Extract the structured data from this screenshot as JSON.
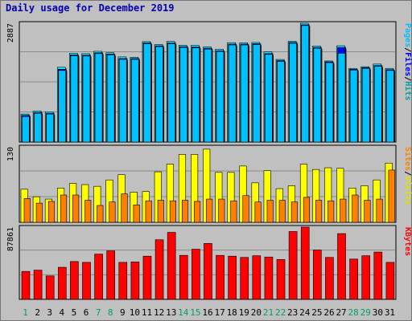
{
  "title": "Daily usage for December 2019",
  "colors": {
    "background": "#c0c0c0",
    "hits": "#00ffff",
    "files": "#0000ff",
    "pages": "#00c0ff",
    "visits": "#ffff00",
    "sites": "#ff8000",
    "kbytes": "#ff0000",
    "weekend_label": "#00a060",
    "weekday_label": "#000000",
    "title": "#0000b0"
  },
  "chart_data": [
    {
      "type": "bar",
      "panel": "top",
      "ymax_label": "2887",
      "ylim": [
        0,
        2887
      ],
      "side_label": {
        "parts": [
          "Pages",
          "/",
          "Files",
          "/",
          "Hits"
        ],
        "colors": [
          "#00c0ff",
          "#000000",
          "#0000ff",
          "#000000",
          "#00a0a0"
        ]
      },
      "categories": [
        "1",
        "2",
        "3",
        "4",
        "5",
        "6",
        "7",
        "8",
        "9",
        "10",
        "11",
        "12",
        "13",
        "14",
        "15",
        "16",
        "17",
        "18",
        "19",
        "20",
        "21",
        "22",
        "23",
        "24",
        "25",
        "26",
        "27",
        "28",
        "29",
        "30",
        "31"
      ],
      "series": [
        {
          "name": "Hits",
          "values": [
            680,
            753,
            734,
            1817,
            2157,
            2147,
            2205,
            2170,
            2070,
            2060,
            2440,
            2370,
            2445,
            2350,
            2350,
            2310,
            2255,
            2415,
            2410,
            2420,
            2190,
            2007,
            2450,
            2887,
            2335,
            1970,
            2340,
            1790,
            1830,
            1895,
            1790
          ]
        },
        {
          "name": "Files",
          "values": [
            650,
            720,
            700,
            1770,
            2120,
            2110,
            2170,
            2140,
            2030,
            2030,
            2410,
            2340,
            2410,
            2320,
            2310,
            2280,
            2220,
            2380,
            2380,
            2390,
            2150,
            1980,
            2420,
            2850,
            2300,
            1950,
            2300,
            1770,
            1810,
            1860,
            1760
          ]
        },
        {
          "name": "Pages",
          "values": [
            620,
            700,
            680,
            1740,
            2100,
            2090,
            2150,
            2120,
            2010,
            2010,
            2390,
            2320,
            2390,
            2300,
            2290,
            2260,
            2200,
            2360,
            2360,
            2370,
            2130,
            1960,
            2400,
            2830,
            2280,
            1930,
            2160,
            1750,
            1790,
            1840,
            1740
          ]
        }
      ]
    },
    {
      "type": "bar",
      "panel": "middle",
      "ymax_label": "130",
      "ylim": [
        0,
        130
      ],
      "side_label": {
        "parts": [
          "Sites",
          "/",
          "Visits"
        ],
        "colors": [
          "#ff8000",
          "#000000",
          "#e0e000"
        ]
      },
      "categories": [
        "1",
        "2",
        "3",
        "4",
        "5",
        "6",
        "7",
        "8",
        "9",
        "10",
        "11",
        "12",
        "13",
        "14",
        "15",
        "16",
        "17",
        "18",
        "19",
        "20",
        "21",
        "22",
        "23",
        "24",
        "25",
        "26",
        "27",
        "28",
        "29",
        "30",
        "31"
      ],
      "series": [
        {
          "name": "Visits",
          "values": [
            57,
            44,
            40,
            59,
            67,
            65,
            62,
            73,
            82,
            52,
            53,
            87,
            100,
            117,
            117,
            126,
            86,
            86,
            97,
            68,
            89,
            58,
            63,
            100,
            91,
            94,
            93,
            59,
            63,
            73,
            102
          ]
        },
        {
          "name": "Sites",
          "values": [
            41,
            33,
            36,
            47,
            47,
            38,
            29,
            35,
            49,
            30,
            37,
            38,
            37,
            38,
            36,
            40,
            40,
            37,
            46,
            35,
            38,
            38,
            35,
            43,
            38,
            37,
            40,
            47,
            38,
            40,
            90
          ]
        }
      ]
    },
    {
      "type": "bar",
      "panel": "bottom",
      "ymax_label": "87861",
      "ylim": [
        0,
        87861
      ],
      "side_label": {
        "parts": [
          "KBytes"
        ],
        "colors": [
          "#ff0000"
        ]
      },
      "categories": [
        "1",
        "2",
        "3",
        "4",
        "5",
        "6",
        "7",
        "8",
        "9",
        "10",
        "11",
        "12",
        "13",
        "14",
        "15",
        "16",
        "17",
        "18",
        "19",
        "20",
        "21",
        "22",
        "23",
        "24",
        "25",
        "26",
        "27",
        "28",
        "29",
        "30",
        "31"
      ],
      "series": [
        {
          "name": "KBytes",
          "values": [
            34000,
            35500,
            28500,
            39000,
            46000,
            45000,
            55000,
            59000,
            45000,
            45500,
            52500,
            72500,
            81500,
            53500,
            61000,
            68000,
            53500,
            52500,
            51000,
            53000,
            51500,
            48500,
            82500,
            87861,
            60000,
            51000,
            80000,
            49000,
            53000,
            57500,
            45000
          ]
        }
      ]
    }
  ]
}
